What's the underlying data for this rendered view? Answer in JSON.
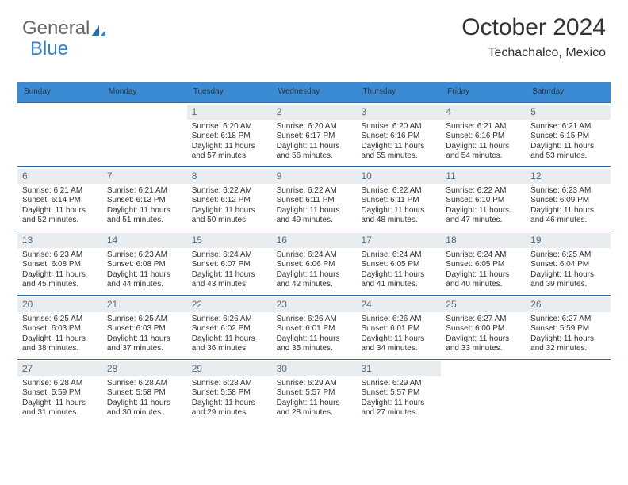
{
  "colors": {
    "header_bg": "#3b8bd4",
    "header_text": "#ffffff",
    "daynum_bg": "#e9edef",
    "daynum_text": "#5a6a78",
    "body_text": "#333333",
    "rule": "#2a6aa8",
    "logo_gray": "#666666",
    "logo_blue": "#3b7fc4",
    "background": "#ffffff"
  },
  "logo": {
    "part1": "General",
    "part2": "Blue"
  },
  "title": {
    "month": "October 2024",
    "location": "Techachalco, Mexico"
  },
  "day_headers": [
    "Sunday",
    "Monday",
    "Tuesday",
    "Wednesday",
    "Thursday",
    "Friday",
    "Saturday"
  ],
  "weeks": [
    [
      {
        "n": "",
        "sr": "",
        "ss": "",
        "dl": "",
        "empty": true
      },
      {
        "n": "",
        "sr": "",
        "ss": "",
        "dl": "",
        "empty": true
      },
      {
        "n": "1",
        "sr": "Sunrise: 6:20 AM",
        "ss": "Sunset: 6:18 PM",
        "dl": "Daylight: 11 hours and 57 minutes."
      },
      {
        "n": "2",
        "sr": "Sunrise: 6:20 AM",
        "ss": "Sunset: 6:17 PM",
        "dl": "Daylight: 11 hours and 56 minutes."
      },
      {
        "n": "3",
        "sr": "Sunrise: 6:20 AM",
        "ss": "Sunset: 6:16 PM",
        "dl": "Daylight: 11 hours and 55 minutes."
      },
      {
        "n": "4",
        "sr": "Sunrise: 6:21 AM",
        "ss": "Sunset: 6:16 PM",
        "dl": "Daylight: 11 hours and 54 minutes."
      },
      {
        "n": "5",
        "sr": "Sunrise: 6:21 AM",
        "ss": "Sunset: 6:15 PM",
        "dl": "Daylight: 11 hours and 53 minutes."
      }
    ],
    [
      {
        "n": "6",
        "sr": "Sunrise: 6:21 AM",
        "ss": "Sunset: 6:14 PM",
        "dl": "Daylight: 11 hours and 52 minutes."
      },
      {
        "n": "7",
        "sr": "Sunrise: 6:21 AM",
        "ss": "Sunset: 6:13 PM",
        "dl": "Daylight: 11 hours and 51 minutes."
      },
      {
        "n": "8",
        "sr": "Sunrise: 6:22 AM",
        "ss": "Sunset: 6:12 PM",
        "dl": "Daylight: 11 hours and 50 minutes."
      },
      {
        "n": "9",
        "sr": "Sunrise: 6:22 AM",
        "ss": "Sunset: 6:11 PM",
        "dl": "Daylight: 11 hours and 49 minutes."
      },
      {
        "n": "10",
        "sr": "Sunrise: 6:22 AM",
        "ss": "Sunset: 6:11 PM",
        "dl": "Daylight: 11 hours and 48 minutes."
      },
      {
        "n": "11",
        "sr": "Sunrise: 6:22 AM",
        "ss": "Sunset: 6:10 PM",
        "dl": "Daylight: 11 hours and 47 minutes."
      },
      {
        "n": "12",
        "sr": "Sunrise: 6:23 AM",
        "ss": "Sunset: 6:09 PM",
        "dl": "Daylight: 11 hours and 46 minutes."
      }
    ],
    [
      {
        "n": "13",
        "sr": "Sunrise: 6:23 AM",
        "ss": "Sunset: 6:08 PM",
        "dl": "Daylight: 11 hours and 45 minutes."
      },
      {
        "n": "14",
        "sr": "Sunrise: 6:23 AM",
        "ss": "Sunset: 6:08 PM",
        "dl": "Daylight: 11 hours and 44 minutes."
      },
      {
        "n": "15",
        "sr": "Sunrise: 6:24 AM",
        "ss": "Sunset: 6:07 PM",
        "dl": "Daylight: 11 hours and 43 minutes."
      },
      {
        "n": "16",
        "sr": "Sunrise: 6:24 AM",
        "ss": "Sunset: 6:06 PM",
        "dl": "Daylight: 11 hours and 42 minutes."
      },
      {
        "n": "17",
        "sr": "Sunrise: 6:24 AM",
        "ss": "Sunset: 6:05 PM",
        "dl": "Daylight: 11 hours and 41 minutes."
      },
      {
        "n": "18",
        "sr": "Sunrise: 6:24 AM",
        "ss": "Sunset: 6:05 PM",
        "dl": "Daylight: 11 hours and 40 minutes."
      },
      {
        "n": "19",
        "sr": "Sunrise: 6:25 AM",
        "ss": "Sunset: 6:04 PM",
        "dl": "Daylight: 11 hours and 39 minutes."
      }
    ],
    [
      {
        "n": "20",
        "sr": "Sunrise: 6:25 AM",
        "ss": "Sunset: 6:03 PM",
        "dl": "Daylight: 11 hours and 38 minutes."
      },
      {
        "n": "21",
        "sr": "Sunrise: 6:25 AM",
        "ss": "Sunset: 6:03 PM",
        "dl": "Daylight: 11 hours and 37 minutes."
      },
      {
        "n": "22",
        "sr": "Sunrise: 6:26 AM",
        "ss": "Sunset: 6:02 PM",
        "dl": "Daylight: 11 hours and 36 minutes."
      },
      {
        "n": "23",
        "sr": "Sunrise: 6:26 AM",
        "ss": "Sunset: 6:01 PM",
        "dl": "Daylight: 11 hours and 35 minutes."
      },
      {
        "n": "24",
        "sr": "Sunrise: 6:26 AM",
        "ss": "Sunset: 6:01 PM",
        "dl": "Daylight: 11 hours and 34 minutes."
      },
      {
        "n": "25",
        "sr": "Sunrise: 6:27 AM",
        "ss": "Sunset: 6:00 PM",
        "dl": "Daylight: 11 hours and 33 minutes."
      },
      {
        "n": "26",
        "sr": "Sunrise: 6:27 AM",
        "ss": "Sunset: 5:59 PM",
        "dl": "Daylight: 11 hours and 32 minutes."
      }
    ],
    [
      {
        "n": "27",
        "sr": "Sunrise: 6:28 AM",
        "ss": "Sunset: 5:59 PM",
        "dl": "Daylight: 11 hours and 31 minutes."
      },
      {
        "n": "28",
        "sr": "Sunrise: 6:28 AM",
        "ss": "Sunset: 5:58 PM",
        "dl": "Daylight: 11 hours and 30 minutes."
      },
      {
        "n": "29",
        "sr": "Sunrise: 6:28 AM",
        "ss": "Sunset: 5:58 PM",
        "dl": "Daylight: 11 hours and 29 minutes."
      },
      {
        "n": "30",
        "sr": "Sunrise: 6:29 AM",
        "ss": "Sunset: 5:57 PM",
        "dl": "Daylight: 11 hours and 28 minutes."
      },
      {
        "n": "31",
        "sr": "Sunrise: 6:29 AM",
        "ss": "Sunset: 5:57 PM",
        "dl": "Daylight: 11 hours and 27 minutes."
      },
      {
        "n": "",
        "sr": "",
        "ss": "",
        "dl": "",
        "empty": true
      },
      {
        "n": "",
        "sr": "",
        "ss": "",
        "dl": "",
        "empty": true
      }
    ]
  ]
}
